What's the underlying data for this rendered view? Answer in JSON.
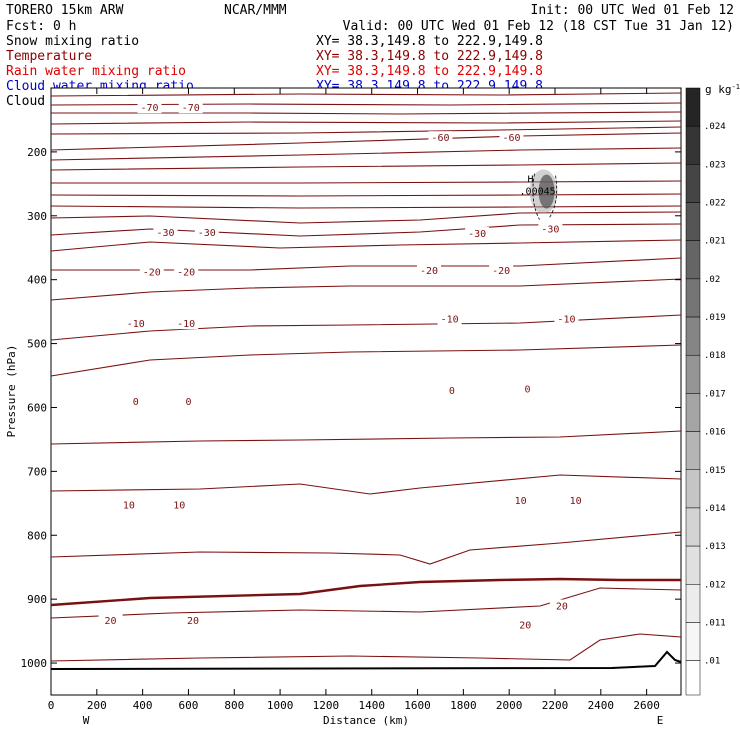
{
  "header": {
    "model": "TORERO  15km ARW",
    "center": "NCAR/MMM",
    "init": "Init: 00 UTC Wed 01 Feb 12",
    "fcst": "Fcst:    0 h",
    "valid": "Valid: 00 UTC Wed 01 Feb 12 (18 CST Tue 31 Jan 12)"
  },
  "legend": [
    {
      "name": "Snow mixing ratio",
      "xy": "XY=  38.3,149.8 to 222.9,149.8",
      "color": "#000000"
    },
    {
      "name": "Temperature",
      "xy": "XY=  38.3,149.8 to 222.9,149.8",
      "color": "#8b0000"
    },
    {
      "name": "Rain water mixing ratio",
      "xy": "XY=  38.3,149.8 to 222.9,149.8",
      "color": "#e00000"
    },
    {
      "name": "Cloud water mixing ratio",
      "xy": "XY=  38.3,149.8 to 222.9,149.8",
      "color": "#0000c8"
    },
    {
      "name": "Cloud ice mixing ratio",
      "xy": "XY=  38.3,149.8 to 222.9,149.8",
      "color": "#000000"
    }
  ],
  "colors": {
    "temperature": "#7a1010",
    "terrain": "#000000",
    "snow_shade": "#555555"
  },
  "chart_data": {
    "type": "cross-section contour",
    "xlabel": "Distance (km)",
    "ylabel": "Pressure (hPa)",
    "xlim": [
      0,
      2750
    ],
    "ylim": [
      1050,
      100
    ],
    "x_ticks": [
      "0",
      "200",
      "400",
      "600",
      "800",
      "1000",
      "1200",
      "1400",
      "1600",
      "1800",
      "2000",
      "2200",
      "2400",
      "2600"
    ],
    "x_tick_values": [
      0,
      200,
      400,
      600,
      800,
      1000,
      1200,
      1400,
      1600,
      1800,
      2000,
      2200,
      2400,
      2600
    ],
    "y_ticks": [
      "200",
      "300",
      "400",
      "500",
      "600",
      "700",
      "800",
      "900",
      "1000"
    ],
    "y_tick_values": [
      200,
      300,
      400,
      500,
      600,
      700,
      800,
      900,
      1000
    ],
    "x_end_labels": {
      "left": "W",
      "right": "E"
    },
    "colorbar": {
      "unit": "g kg",
      "unit_exp": "-1",
      "labels": [
        ".024",
        ".023",
        ".022",
        ".021",
        ".02",
        ".019",
        ".018",
        ".017",
        ".016",
        ".015",
        ".014",
        ".013",
        ".012",
        ".011",
        ".01"
      ],
      "values": [
        0.024,
        0.023,
        0.022,
        0.021,
        0.02,
        0.019,
        0.018,
        0.017,
        0.016,
        0.015,
        0.014,
        0.013,
        0.012,
        0.011,
        0.01
      ],
      "colors": [
        "#252525",
        "#353535",
        "#454545",
        "#555555",
        "#656565",
        "#757575",
        "#858585",
        "#959595",
        "#a5a5a5",
        "#b5b5b5",
        "#c5c5c5",
        "#d3d3d3",
        "#e0e0e0",
        "#ececec",
        "#f6f6f6"
      ]
    },
    "snow_max": {
      "mark": "H",
      "value": ".00045",
      "x": 2150,
      "p": 262
    },
    "contour_labels": [
      {
        "text": "-70",
        "x": 430,
        "p": 130
      },
      {
        "text": "-70",
        "x": 610,
        "p": 130
      },
      {
        "text": "-60",
        "x": 1700,
        "p": 177
      },
      {
        "text": "-60",
        "x": 2010,
        "p": 177
      },
      {
        "text": "-30",
        "x": 500,
        "p": 325
      },
      {
        "text": "-30",
        "x": 680,
        "p": 325
      },
      {
        "text": "-30",
        "x": 1860,
        "p": 327
      },
      {
        "text": "-30",
        "x": 2180,
        "p": 320
      },
      {
        "text": "-20",
        "x": 440,
        "p": 387
      },
      {
        "text": "-20",
        "x": 590,
        "p": 387
      },
      {
        "text": "-20",
        "x": 1650,
        "p": 385
      },
      {
        "text": "-20",
        "x": 1965,
        "p": 385
      },
      {
        "text": "-10",
        "x": 370,
        "p": 468
      },
      {
        "text": "-10",
        "x": 590,
        "p": 468
      },
      {
        "text": "-10",
        "x": 1740,
        "p": 461
      },
      {
        "text": "-10",
        "x": 2250,
        "p": 461
      },
      {
        "text": "0",
        "x": 370,
        "p": 590
      },
      {
        "text": "0",
        "x": 600,
        "p": 590
      },
      {
        "text": "0",
        "x": 1750,
        "p": 573
      },
      {
        "text": "0",
        "x": 2080,
        "p": 570
      },
      {
        "text": "10",
        "x": 340,
        "p": 752
      },
      {
        "text": "10",
        "x": 560,
        "p": 752
      },
      {
        "text": "10",
        "x": 2050,
        "p": 745
      },
      {
        "text": "10",
        "x": 2290,
        "p": 745
      },
      {
        "text": "20",
        "x": 260,
        "p": 933
      },
      {
        "text": "20",
        "x": 620,
        "p": 933
      },
      {
        "text": "20",
        "x": 2070,
        "p": 940
      },
      {
        "text": "20",
        "x": 2230,
        "p": 910
      }
    ]
  }
}
